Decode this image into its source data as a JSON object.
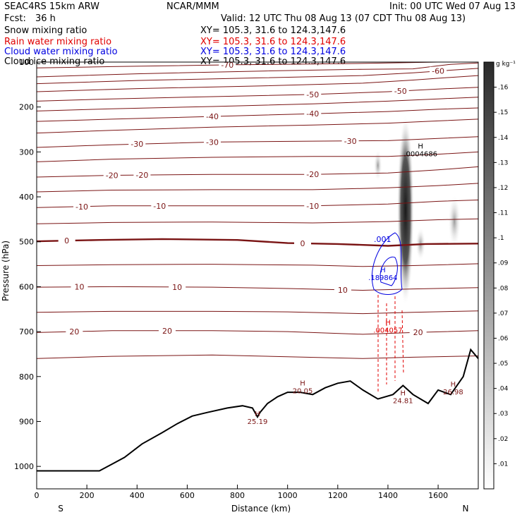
{
  "header": {
    "model": "SEAC4RS 15km ARW",
    "center": "NCAR/MMM",
    "init": "Init: 00 UTC Wed 07 Aug 13",
    "fcst_label": "Fcst:",
    "fcst_value": "36 h",
    "valid": "Valid: 12 UTC Thu 08 Aug 13 (07 CDT Thu 08 Aug 13)"
  },
  "fields": [
    {
      "name": "Snow mixing ratio",
      "xy": "XY= 105.3, 31.6 to 124.3,147.6",
      "color": "#000000"
    },
    {
      "name": "Rain water mixing ratio",
      "xy": "XY= 105.3, 31.6 to 124.3,147.6",
      "color": "#e00000"
    },
    {
      "name": "Cloud water mixing ratio",
      "xy": "XY= 105.3, 31.6 to 124.3,147.6",
      "color": "#0000e0"
    },
    {
      "name": "Cloud ice mixing ratio",
      "xy": "XY= 105.3, 31.6 to 124.3,147.6",
      "color": "#000000"
    }
  ],
  "chart_data": {
    "type": "contour-cross-section",
    "xlabel": "Distance (km)",
    "ylabel": "Pressure (hPa)",
    "xlim": [
      0,
      1760
    ],
    "ylim": [
      1050,
      100
    ],
    "x_ticks": [
      0,
      200,
      400,
      600,
      800,
      1000,
      1200,
      1400,
      1600
    ],
    "y_ticks": [
      200,
      300,
      400,
      500,
      600,
      700,
      800,
      900,
      1000
    ],
    "y_ticks_edge": [
      100
    ],
    "direction_labels": {
      "left": "S",
      "right": "N"
    },
    "colorbar": {
      "unit": "g kg⁻¹",
      "ticks": [
        ".01",
        ".02",
        ".03",
        ".04",
        ".05",
        ".06",
        ".07",
        ".08",
        ".09",
        ".1",
        ".11",
        ".12",
        ".13",
        ".14",
        ".15",
        ".16"
      ]
    },
    "temperature_contours": [
      {
        "level": -70,
        "label": "-70",
        "pts": [
          [
            0,
            113
          ],
          [
            300,
            110
          ],
          [
            800,
            106
          ],
          [
            1300,
            103
          ],
          [
            1600,
            100
          ],
          [
            1760,
            97
          ]
        ]
      },
      {
        "level": -65,
        "label": "",
        "pts": [
          [
            0,
            133
          ],
          [
            400,
            126
          ],
          [
            900,
            120
          ],
          [
            1300,
            116
          ],
          [
            1500,
            115
          ],
          [
            1650,
            105
          ],
          [
            1760,
            102
          ]
        ]
      },
      {
        "level": -60,
        "label": "-60",
        "pts": [
          [
            0,
            148
          ],
          [
            400,
            141
          ],
          [
            900,
            135
          ],
          [
            1300,
            130
          ],
          [
            1500,
            124
          ],
          [
            1650,
            118
          ],
          [
            1760,
            114
          ]
        ]
      },
      {
        "level": -55,
        "label": "",
        "pts": [
          [
            0,
            166
          ],
          [
            400,
            159
          ],
          [
            900,
            153
          ],
          [
            1300,
            147
          ],
          [
            1500,
            140
          ],
          [
            1650,
            134
          ],
          [
            1760,
            130
          ]
        ]
      },
      {
        "level": -50,
        "label": "-50",
        "pts": [
          [
            0,
            187
          ],
          [
            300,
            182
          ],
          [
            700,
            177
          ],
          [
            1100,
            172
          ],
          [
            1400,
            166
          ],
          [
            1600,
            160
          ],
          [
            1760,
            156
          ]
        ]
      },
      {
        "level": -45,
        "label": "",
        "pts": [
          [
            0,
            209
          ],
          [
            300,
            204
          ],
          [
            700,
            199
          ],
          [
            1100,
            193
          ],
          [
            1400,
            187
          ],
          [
            1600,
            182
          ],
          [
            1760,
            178
          ]
        ]
      },
      {
        "level": -40,
        "label": "-40",
        "pts": [
          [
            0,
            232
          ],
          [
            300,
            227
          ],
          [
            700,
            221
          ],
          [
            1100,
            215
          ],
          [
            1400,
            210
          ],
          [
            1600,
            205
          ],
          [
            1760,
            202
          ]
        ]
      },
      {
        "level": -35,
        "label": "",
        "pts": [
          [
            0,
            258
          ],
          [
            300,
            252
          ],
          [
            700,
            245
          ],
          [
            1100,
            240
          ],
          [
            1400,
            236
          ],
          [
            1600,
            231
          ],
          [
            1760,
            227
          ]
        ]
      },
      {
        "level": -30,
        "label": "-30",
        "pts": [
          [
            0,
            290
          ],
          [
            300,
            284
          ],
          [
            700,
            278
          ],
          [
            1100,
            276
          ],
          [
            1400,
            275
          ],
          [
            1600,
            270
          ],
          [
            1760,
            266
          ]
        ]
      },
      {
        "level": -25,
        "label": "",
        "pts": [
          [
            0,
            322
          ],
          [
            300,
            316
          ],
          [
            700,
            312
          ],
          [
            1100,
            310
          ],
          [
            1400,
            310
          ],
          [
            1600,
            305
          ],
          [
            1760,
            300
          ]
        ]
      },
      {
        "level": -20,
        "label": "-20",
        "pts": [
          [
            0,
            356
          ],
          [
            300,
            352
          ],
          [
            700,
            350
          ],
          [
            1100,
            350
          ],
          [
            1400,
            347
          ],
          [
            1600,
            340
          ],
          [
            1760,
            333
          ]
        ]
      },
      {
        "level": -15,
        "label": "",
        "pts": [
          [
            0,
            389
          ],
          [
            300,
            385
          ],
          [
            700,
            384
          ],
          [
            1100,
            384
          ],
          [
            1400,
            380
          ],
          [
            1600,
            375
          ],
          [
            1760,
            370
          ]
        ]
      },
      {
        "level": -10,
        "label": "-10",
        "pts": [
          [
            0,
            424
          ],
          [
            300,
            420
          ],
          [
            700,
            420
          ],
          [
            1100,
            420
          ],
          [
            1400,
            416
          ],
          [
            1600,
            410
          ],
          [
            1760,
            407
          ]
        ]
      },
      {
        "level": -5,
        "label": "",
        "pts": [
          [
            0,
            460
          ],
          [
            300,
            457
          ],
          [
            700,
            456
          ],
          [
            1100,
            458
          ],
          [
            1400,
            455
          ],
          [
            1600,
            451
          ],
          [
            1760,
            449
          ]
        ]
      },
      {
        "level": 0,
        "label": "0",
        "pts": [
          [
            0,
            499
          ],
          [
            250,
            496
          ],
          [
            500,
            494
          ],
          [
            800,
            496
          ],
          [
            1000,
            503
          ],
          [
            1200,
            505
          ],
          [
            1400,
            509
          ],
          [
            1550,
            505
          ],
          [
            1760,
            504
          ]
        ]
      },
      {
        "level": 5,
        "label": "",
        "pts": [
          [
            0,
            553
          ],
          [
            300,
            551
          ],
          [
            700,
            550
          ],
          [
            1100,
            552
          ],
          [
            1300,
            555
          ],
          [
            1500,
            553
          ],
          [
            1760,
            549
          ]
        ]
      },
      {
        "level": 10,
        "label": "10",
        "pts": [
          [
            0,
            601
          ],
          [
            300,
            600
          ],
          [
            700,
            601
          ],
          [
            1000,
            604
          ],
          [
            1300,
            608
          ],
          [
            1500,
            605
          ],
          [
            1760,
            602
          ]
        ]
      },
      {
        "level": 15,
        "label": "",
        "pts": [
          [
            0,
            657
          ],
          [
            300,
            655
          ],
          [
            700,
            655
          ],
          [
            1000,
            656
          ],
          [
            1300,
            660
          ],
          [
            1500,
            657
          ],
          [
            1760,
            654
          ]
        ]
      },
      {
        "level": 20,
        "label": "20",
        "pts": [
          [
            0,
            702
          ],
          [
            300,
            698
          ],
          [
            700,
            698
          ],
          [
            1000,
            700
          ],
          [
            1300,
            706
          ],
          [
            1500,
            702
          ],
          [
            1760,
            698
          ]
        ]
      },
      {
        "level": 25,
        "label": "",
        "pts": [
          [
            0,
            760
          ],
          [
            300,
            755
          ],
          [
            700,
            752
          ],
          [
            1000,
            756
          ],
          [
            1300,
            760
          ],
          [
            1500,
            757
          ],
          [
            1760,
            754
          ]
        ]
      }
    ],
    "terrain_surface": [
      [
        0,
        1010
      ],
      [
        250,
        1010
      ],
      [
        300,
        995
      ],
      [
        350,
        980
      ],
      [
        420,
        950
      ],
      [
        500,
        925
      ],
      [
        560,
        905
      ],
      [
        620,
        888
      ],
      [
        680,
        880
      ],
      [
        760,
        870
      ],
      [
        820,
        865
      ],
      [
        860,
        870
      ],
      [
        880,
        890
      ],
      [
        890,
        880
      ],
      [
        920,
        860
      ],
      [
        960,
        845
      ],
      [
        1000,
        835
      ],
      [
        1050,
        835
      ],
      [
        1100,
        840
      ],
      [
        1150,
        825
      ],
      [
        1200,
        815
      ],
      [
        1250,
        810
      ],
      [
        1300,
        830
      ],
      [
        1360,
        850
      ],
      [
        1420,
        840
      ],
      [
        1460,
        820
      ],
      [
        1500,
        840
      ],
      [
        1560,
        860
      ],
      [
        1600,
        830
      ],
      [
        1650,
        840
      ],
      [
        1700,
        800
      ],
      [
        1730,
        740
      ],
      [
        1760,
        760
      ]
    ],
    "maxima": [
      {
        "label": "H",
        "value": "25.19",
        "x": 880,
        "p": 888
      },
      {
        "label": "H",
        "value": "20.05",
        "x": 1060,
        "p": 820
      },
      {
        "label": "H",
        "value": "24.81",
        "x": 1460,
        "p": 842
      },
      {
        "label": "H",
        "value": "26.98",
        "x": 1660,
        "p": 822
      },
      {
        "label": "H",
        "value": ".0004686",
        "x": 1530,
        "p": 292
      },
      {
        "label": "H",
        "value": ".189864",
        "x": 1380,
        "p": 568
      },
      {
        "label": "H",
        "value": ".004057",
        "x": 1400,
        "p": 685
      }
    ],
    "cloud_water_labels": [
      ".001"
    ],
    "series": [
      {
        "name": "Snow mixing ratio",
        "style": "shaded",
        "max": 0.16
      },
      {
        "name": "Rain water mixing ratio",
        "style": "dashed-red",
        "max": 0.004057
      },
      {
        "name": "Cloud water mixing ratio",
        "style": "contour-blue",
        "max": 0.189864
      },
      {
        "name": "Cloud ice mixing ratio",
        "style": "contour-black",
        "max": 0.0004686
      }
    ]
  }
}
